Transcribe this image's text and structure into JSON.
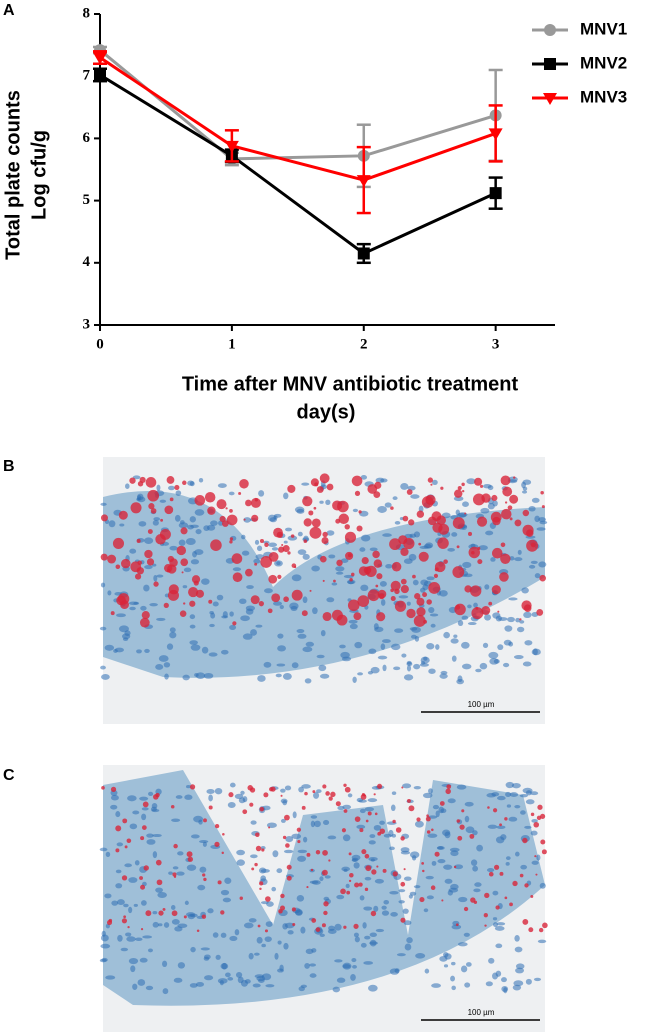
{
  "panel_labels": [
    "A",
    "B",
    "C"
  ],
  "chart_data": {
    "type": "line",
    "ylabel": [
      "Total plate counts",
      "Log cfu/g"
    ],
    "xlabel": [
      "Time after MNV antibiotic treatment",
      "day(s)"
    ],
    "x": [
      0,
      1,
      2,
      3
    ],
    "xlim": [
      0,
      3.45
    ],
    "xticks": [
      0,
      1,
      2,
      3
    ],
    "ylim": [
      3,
      8
    ],
    "yticks": [
      3,
      4,
      5,
      6,
      7,
      8
    ],
    "legend": "upper right",
    "series": [
      {
        "name": "MNV1",
        "color": "#999999",
        "marker": "circle",
        "values": [
          7.42,
          5.67,
          5.72,
          6.37
        ],
        "errors": [
          0.05,
          0.1,
          0.5,
          0.73
        ]
      },
      {
        "name": "MNV2",
        "color": "#000000",
        "marker": "square",
        "values": [
          7.02,
          5.72,
          4.15,
          5.12
        ],
        "errors": [
          0.1,
          0.1,
          0.15,
          0.25
        ]
      },
      {
        "name": "MNV3",
        "color": "#ff0000",
        "marker": "triangle-down",
        "values": [
          7.3,
          5.88,
          5.33,
          6.08
        ],
        "errors": [
          0.1,
          0.25,
          0.53,
          0.45
        ]
      }
    ]
  },
  "micrographs": [
    {
      "scale_bar": "100 µm"
    },
    {
      "scale_bar": "100 µm"
    }
  ]
}
